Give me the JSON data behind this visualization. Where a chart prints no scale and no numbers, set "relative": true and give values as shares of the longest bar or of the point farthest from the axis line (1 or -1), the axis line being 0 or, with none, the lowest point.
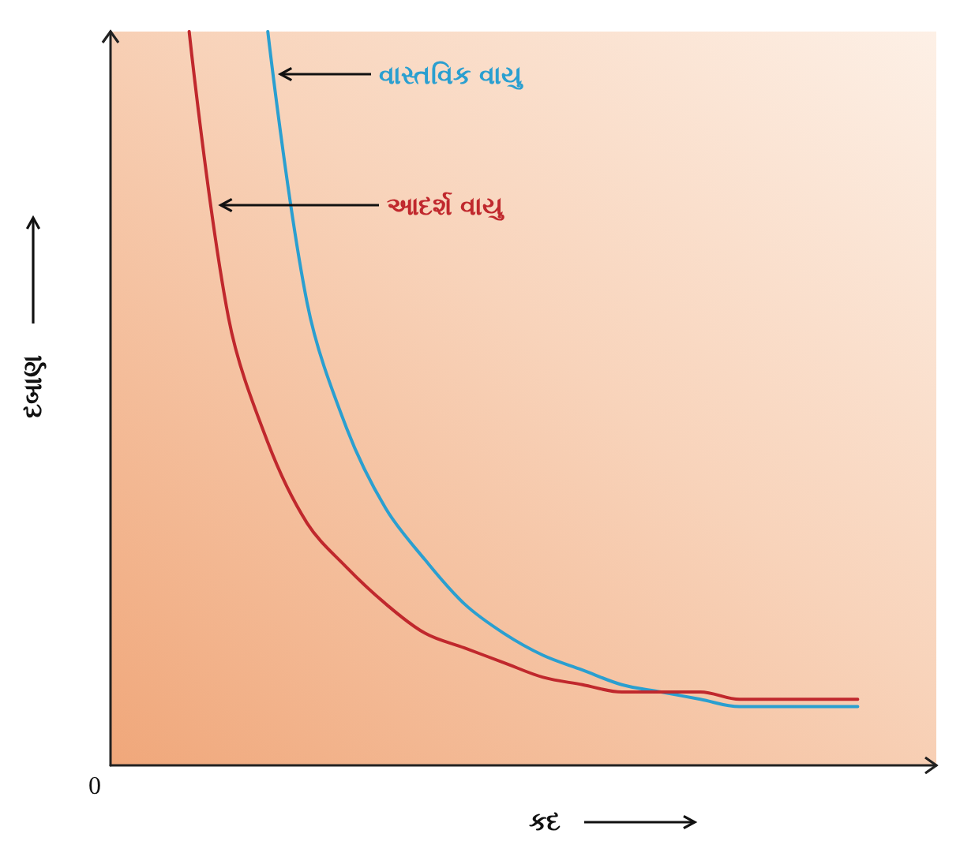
{
  "chart_data": {
    "type": "line",
    "relative": true,
    "xlabel": "કદ",
    "ylabel": "દબાણ",
    "annotations": [
      "0"
    ],
    "grid": false,
    "legend": false,
    "marker": "none",
    "line_style": "solid",
    "categories": [
      null,
      null,
      null,
      null,
      null,
      null,
      null,
      null,
      null,
      null,
      null,
      null,
      null,
      null,
      null,
      null,
      null,
      null,
      null,
      null,
      null,
      null
    ],
    "series": [
      {
        "name": "વાસ્તવિક વાયુ",
        "color": "#2a9fd0",
        "values": [
          null,
          null,
          null,
          null,
          1,
          0.63,
          0.46,
          0.35,
          0.28,
          0.22,
          0.18,
          0.15,
          0.13,
          0.11,
          0.1,
          0.09,
          0.08,
          0.08,
          0.08,
          0.08,
          null,
          null
        ]
      },
      {
        "name": "આદર્શ વાયુ",
        "color": "#c0282d",
        "values": [
          null,
          null,
          1,
          0.61,
          0.44,
          0.33,
          0.27,
          0.22,
          0.18,
          0.16,
          0.14,
          0.12,
          0.11,
          0.1,
          0.1,
          0.1,
          0.09,
          0.09,
          0.09,
          0.09,
          null,
          null
        ]
      }
    ]
  }
}
